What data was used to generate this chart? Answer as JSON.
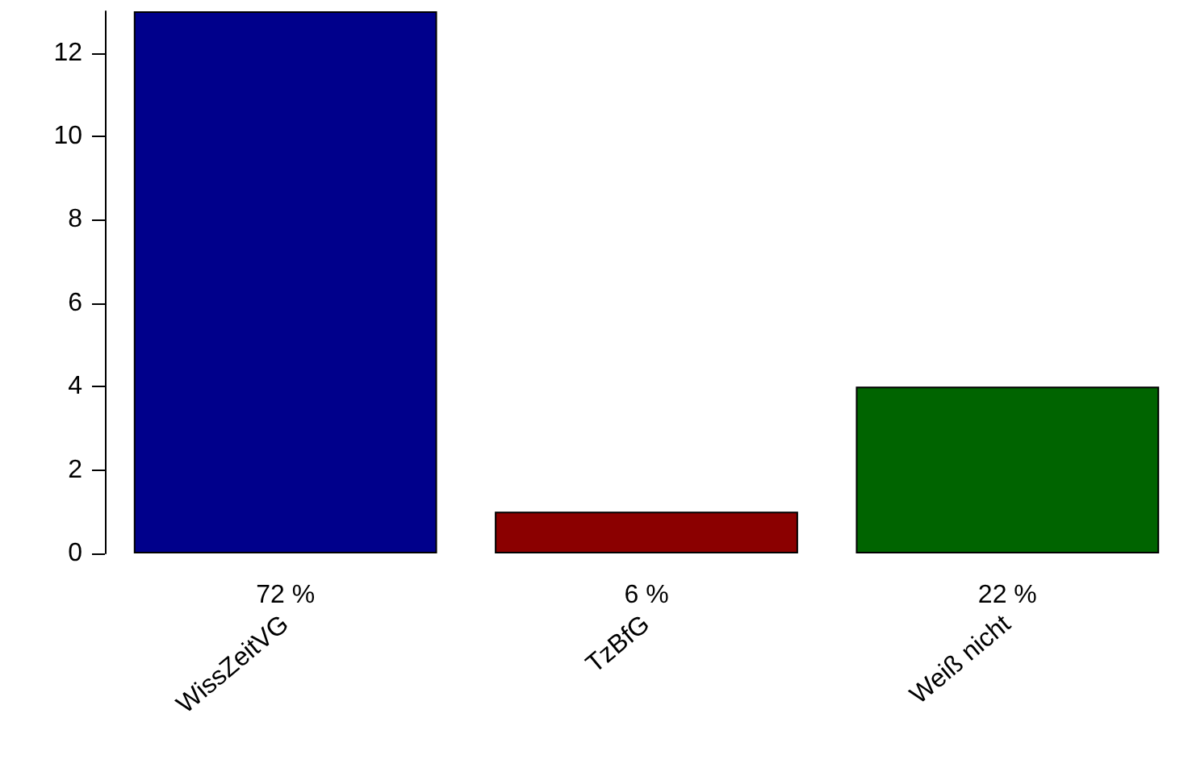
{
  "chart_data": {
    "type": "bar",
    "categories": [
      "WissZeitVG",
      "TzBfG",
      "Weiß nicht"
    ],
    "values": [
      13,
      1,
      4
    ],
    "colors": [
      "#00008b",
      "#8b0000",
      "#006400"
    ],
    "ylim": [
      0,
      13
    ],
    "yticks": [
      0,
      2,
      4,
      6,
      8,
      10,
      12
    ],
    "grid": false,
    "annotations": [
      "72 %",
      "6 %",
      "22 %"
    ]
  }
}
